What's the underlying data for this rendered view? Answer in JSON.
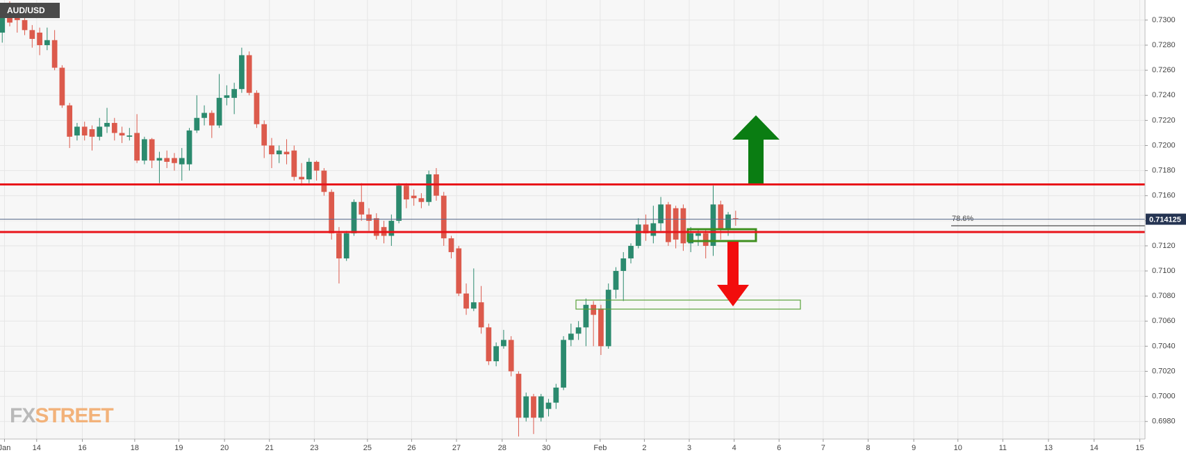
{
  "chart_data": {
    "type": "candlestick",
    "title": "AUD/USD",
    "logo": [
      "FX",
      "STREET"
    ],
    "up_color": "#2b8a6e",
    "down_color": "#dc5a4c",
    "open": [
      0.729,
      0.7302,
      0.7305,
      0.73,
      0.7292,
      0.729,
      0.728,
      0.7284,
      0.7262,
      0.7232,
      0.7208,
      0.7215,
      0.7213,
      0.7207,
      0.7215,
      0.7218,
      0.721,
      0.7207,
      0.721,
      0.7188,
      0.7205,
      0.7188,
      0.719,
      0.719,
      0.7185,
      0.7185,
      0.7212,
      0.7222,
      0.7226,
      0.7216,
      0.7238,
      0.7238,
      0.7245,
      0.7272,
      0.7242,
      0.7217,
      0.72,
      0.7193,
      0.7195,
      0.7196,
      0.7175,
      0.7173,
      0.7187,
      0.718,
      0.7163,
      0.713,
      0.711,
      0.713,
      0.7155,
      0.7145,
      0.7142,
      0.7135,
      0.7128,
      0.714,
      0.7168,
      0.716,
      0.7158,
      0.7155,
      0.7177,
      0.716,
      0.7126,
      0.7118,
      0.7082,
      0.707,
      0.7075,
      0.7055,
      0.7028,
      0.704,
      0.7045,
      0.7018,
      0.6983,
      0.7,
      0.6983,
      0.699,
      0.6995,
      0.7007,
      0.7045,
      0.705,
      0.7055,
      0.7073,
      0.707,
      0.704,
      0.7085,
      0.71,
      0.711,
      0.712,
      0.7137,
      0.7128,
      0.7138,
      0.7153,
      0.715,
      0.715,
      0.7122,
      0.7128,
      0.713,
      0.712,
      0.7153,
      0.7133,
      0.7142
    ],
    "high": [
      0.7312,
      0.7315,
      0.7312,
      0.7304,
      0.7296,
      0.7294,
      0.7294,
      0.7292,
      0.7264,
      0.7234,
      0.7218,
      0.7219,
      0.7216,
      0.7222,
      0.723,
      0.7222,
      0.7215,
      0.7214,
      0.7225,
      0.7207,
      0.7206,
      0.7195,
      0.7196,
      0.7194,
      0.7198,
      0.7214,
      0.724,
      0.7232,
      0.7228,
      0.7257,
      0.7248,
      0.725,
      0.7278,
      0.7275,
      0.7244,
      0.722,
      0.7206,
      0.72,
      0.7205,
      0.72,
      0.7186,
      0.719,
      0.7188,
      0.7182,
      0.7165,
      0.7135,
      0.7132,
      0.7157,
      0.717,
      0.715,
      0.7146,
      0.714,
      0.7145,
      0.717,
      0.717,
      0.7165,
      0.7162,
      0.718,
      0.7182,
      0.7163,
      0.7128,
      0.712,
      0.709,
      0.7102,
      0.7088,
      0.7058,
      0.7043,
      0.7053,
      0.7048,
      0.702,
      0.7003,
      0.7002,
      0.7002,
      0.6998,
      0.701,
      0.7048,
      0.7058,
      0.706,
      0.7078,
      0.7076,
      0.7073,
      0.709,
      0.7103,
      0.7115,
      0.7122,
      0.7142,
      0.7145,
      0.7152,
      0.7159,
      0.7155,
      0.7152,
      0.7153,
      0.7135,
      0.7134,
      0.7134,
      0.7168,
      0.7156,
      0.7147,
      0.7148
    ],
    "low": [
      0.7282,
      0.7295,
      0.729,
      0.7288,
      0.7278,
      0.7272,
      0.7276,
      0.726,
      0.723,
      0.7198,
      0.7204,
      0.7204,
      0.7196,
      0.7204,
      0.721,
      0.7204,
      0.7202,
      0.7204,
      0.7186,
      0.7185,
      0.7182,
      0.717,
      0.7182,
      0.718,
      0.7172,
      0.718,
      0.721,
      0.7216,
      0.7206,
      0.7214,
      0.7232,
      0.7225,
      0.7242,
      0.724,
      0.7214,
      0.719,
      0.7182,
      0.7186,
      0.7185,
      0.7172,
      0.7168,
      0.717,
      0.7172,
      0.716,
      0.7125,
      0.709,
      0.7108,
      0.7128,
      0.714,
      0.7132,
      0.7125,
      0.7122,
      0.712,
      0.7138,
      0.715,
      0.7152,
      0.715,
      0.7152,
      0.7156,
      0.712,
      0.711,
      0.708,
      0.7065,
      0.7068,
      0.705,
      0.7025,
      0.7024,
      0.7038,
      0.7016,
      0.6968,
      0.698,
      0.697,
      0.698,
      0.6984,
      0.699,
      0.7005,
      0.704,
      0.7045,
      0.704,
      0.704,
      0.7033,
      0.7038,
      0.7078,
      0.7076,
      0.7106,
      0.7118,
      0.7124,
      0.7122,
      0.7132,
      0.712,
      0.7118,
      0.7116,
      0.7115,
      0.712,
      0.711,
      0.7112,
      0.7125,
      0.7128,
      0.7136
    ],
    "close": [
      0.7302,
      0.7298,
      0.73,
      0.7292,
      0.7285,
      0.728,
      0.7284,
      0.7262,
      0.7232,
      0.7207,
      0.7215,
      0.7208,
      0.7207,
      0.7215,
      0.7218,
      0.721,
      0.7208,
      0.7208,
      0.7188,
      0.7205,
      0.7188,
      0.719,
      0.7187,
      0.7186,
      0.719,
      0.7212,
      0.7222,
      0.7226,
      0.7216,
      0.7238,
      0.724,
      0.7245,
      0.7272,
      0.7242,
      0.7217,
      0.72,
      0.7193,
      0.7196,
      0.7193,
      0.7175,
      0.7173,
      0.7187,
      0.718,
      0.7163,
      0.713,
      0.711,
      0.713,
      0.7155,
      0.7145,
      0.714,
      0.7128,
      0.7128,
      0.714,
      0.7168,
      0.7157,
      0.7158,
      0.7155,
      0.7177,
      0.716,
      0.7126,
      0.7115,
      0.7082,
      0.707,
      0.7075,
      0.7055,
      0.7028,
      0.704,
      0.7045,
      0.702,
      0.6983,
      0.7,
      0.6983,
      0.7,
      0.6995,
      0.7007,
      0.7045,
      0.705,
      0.7055,
      0.7073,
      0.7065,
      0.704,
      0.7085,
      0.71,
      0.711,
      0.712,
      0.7137,
      0.713,
      0.7138,
      0.7153,
      0.7123,
      0.7125,
      0.7122,
      0.713,
      0.713,
      0.712,
      0.7153,
      0.7133,
      0.7145,
      0.7141
    ],
    "levels": [
      0.7169,
      0.7131
    ],
    "level_color": "#e8141a",
    "last_price": 0.714125,
    "fib_level": {
      "label": "78.6%",
      "value": 0.7136
    },
    "xlim": [
      0,
      153
    ],
    "ylim": [
      0.6966,
      0.7316
    ],
    "xticks": [
      {
        "value": 0.6,
        "label": "Jan"
      },
      {
        "value": 4.9,
        "label": "14"
      },
      {
        "value": 11,
        "label": "16"
      },
      {
        "value": 18,
        "label": "18"
      },
      {
        "value": 23.9,
        "label": "19"
      },
      {
        "value": 30,
        "label": "20"
      },
      {
        "value": 36,
        "label": "21"
      },
      {
        "value": 42,
        "label": "23"
      },
      {
        "value": 49.1,
        "label": "25"
      },
      {
        "value": 55,
        "label": "26"
      },
      {
        "value": 61,
        "label": "27"
      },
      {
        "value": 67.1,
        "label": "28"
      },
      {
        "value": 73,
        "label": "30"
      },
      {
        "value": 80.2,
        "label": "Feb"
      },
      {
        "value": 86.1,
        "label": "2"
      },
      {
        "value": 92.1,
        "label": "3"
      },
      {
        "value": 98.1,
        "label": "4"
      },
      {
        "value": 104.1,
        "label": "6"
      },
      {
        "value": 110,
        "label": "7"
      },
      {
        "value": 116,
        "label": "8"
      },
      {
        "value": 122.1,
        "label": "9"
      },
      {
        "value": 128,
        "label": "10"
      },
      {
        "value": 134,
        "label": "11"
      },
      {
        "value": 140.1,
        "label": "13"
      },
      {
        "value": 146.2,
        "label": "14"
      },
      {
        "value": 152.3,
        "label": "15"
      }
    ],
    "yticks": [
      {
        "value": 0.698,
        "label": "0.6980"
      },
      {
        "value": 0.7,
        "label": "0.7000"
      },
      {
        "value": 0.702,
        "label": "0.7020"
      },
      {
        "value": 0.704,
        "label": "0.7040"
      },
      {
        "value": 0.706,
        "label": "0.7060"
      },
      {
        "value": 0.708,
        "label": "0.7080"
      },
      {
        "value": 0.71,
        "label": "0.7100"
      },
      {
        "value": 0.712,
        "label": "0.7120"
      },
      {
        "value": 0.714,
        "label": "0.7140"
      },
      {
        "value": 0.716,
        "label": "0.7160"
      },
      {
        "value": 0.718,
        "label": "0.7180"
      },
      {
        "value": 0.72,
        "label": "0.7200"
      },
      {
        "value": 0.722,
        "label": "0.7220"
      },
      {
        "value": 0.724,
        "label": "0.7240"
      },
      {
        "value": 0.726,
        "label": "0.7260"
      },
      {
        "value": 0.728,
        "label": "0.7280"
      },
      {
        "value": 0.73,
        "label": "0.7300"
      }
    ],
    "grid": true
  }
}
